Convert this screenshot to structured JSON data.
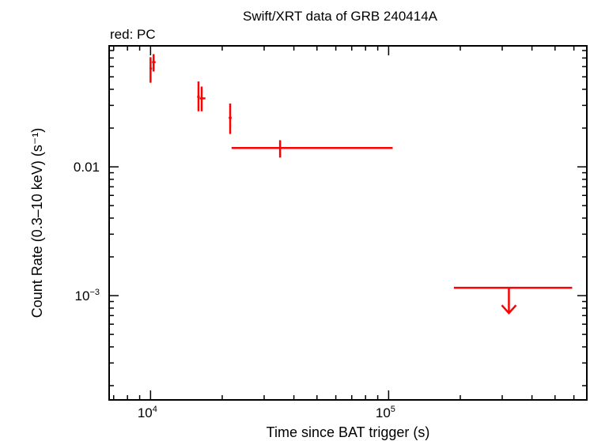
{
  "chart_data": {
    "type": "scatter",
    "title": "Swift/XRT data of GRB 240414A",
    "subtitle": "red: PC",
    "xlabel": "Time since BAT trigger (s)",
    "ylabel": "Count Rate (0.3–10 keV) (s⁻¹)",
    "x_scale": "log",
    "y_scale": "log",
    "xlim": [
      6700,
      680000
    ],
    "ylim": [
      0.000155,
      0.087
    ],
    "x_tick_labels": [
      {
        "value": 10000,
        "base": "10",
        "exp": "4"
      },
      {
        "value": 100000,
        "base": "10",
        "exp": "5"
      }
    ],
    "y_tick_labels": [
      {
        "value": 0.01,
        "text": "0.01"
      },
      {
        "value": 0.001,
        "base": "10",
        "exp": "−3"
      }
    ],
    "series": [
      {
        "color": "#ff0000",
        "points": [
          {
            "x": 10000,
            "xlo": 9900,
            "xhi": 10150,
            "y": 0.058,
            "ylo": 0.045,
            "yhi": 0.071
          },
          {
            "x": 10300,
            "xlo": 10150,
            "xhi": 10500,
            "y": 0.065,
            "ylo": 0.055,
            "yhi": 0.075
          },
          {
            "x": 15900,
            "xlo": 15700,
            "xhi": 16100,
            "y": 0.035,
            "ylo": 0.027,
            "yhi": 0.046
          },
          {
            "x": 16400,
            "xlo": 16100,
            "xhi": 17000,
            "y": 0.034,
            "ylo": 0.027,
            "yhi": 0.042
          },
          {
            "x": 21600,
            "xlo": 21300,
            "xhi": 21900,
            "y": 0.024,
            "ylo": 0.018,
            "yhi": 0.031
          },
          {
            "x": 35000,
            "xlo": 21900,
            "xhi": 104000,
            "y": 0.014,
            "ylo": 0.0118,
            "yhi": 0.0161
          }
        ],
        "upper_limits": [
          {
            "x": 320000,
            "xlo": 188000,
            "xhi": 590000,
            "y": 0.00115
          }
        ]
      }
    ]
  }
}
